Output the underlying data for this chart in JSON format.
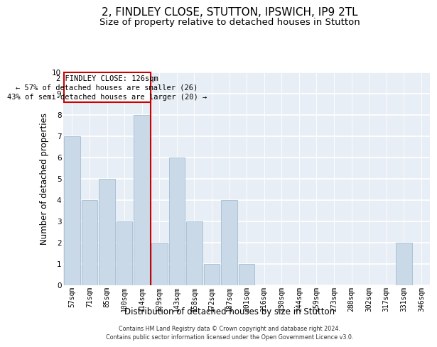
{
  "title_line1": "2, FINDLEY CLOSE, STUTTON, IPSWICH, IP9 2TL",
  "title_line2": "Size of property relative to detached houses in Stutton",
  "xlabel": "Distribution of detached houses by size in Stutton",
  "ylabel": "Number of detached properties",
  "categories": [
    "57sqm",
    "71sqm",
    "85sqm",
    "100sqm",
    "114sqm",
    "129sqm",
    "143sqm",
    "158sqm",
    "172sqm",
    "187sqm",
    "201sqm",
    "216sqm",
    "230sqm",
    "244sqm",
    "259sqm",
    "273sqm",
    "288sqm",
    "302sqm",
    "317sqm",
    "331sqm",
    "346sqm"
  ],
  "values": [
    7,
    4,
    5,
    3,
    8,
    2,
    6,
    3,
    1,
    4,
    1,
    0,
    0,
    0,
    0,
    0,
    0,
    0,
    0,
    2,
    0
  ],
  "bar_color": "#c9d9e8",
  "bar_edge_color": "#9ab5cc",
  "ylim_max": 10,
  "vline_x": 4.5,
  "vline_color": "#cc0000",
  "ann_line1": "2 FINDLEY CLOSE: 126sqm",
  "ann_line2": "← 57% of detached houses are smaller (26)",
  "ann_line3": "43% of semi-detached houses are larger (20) →",
  "footer_line1": "Contains HM Land Registry data © Crown copyright and database right 2024.",
  "footer_line2": "Contains public sector information licensed under the Open Government Licence v3.0.",
  "bg_color": "#e8eef5",
  "grid_color": "#ffffff",
  "ann_box_edgecolor": "#cc0000",
  "title1_fontsize": 11,
  "title2_fontsize": 9.5,
  "tick_fontsize": 7,
  "ylabel_fontsize": 8.5,
  "xlabel_fontsize": 8.5,
  "footer_fontsize": 5.8
}
